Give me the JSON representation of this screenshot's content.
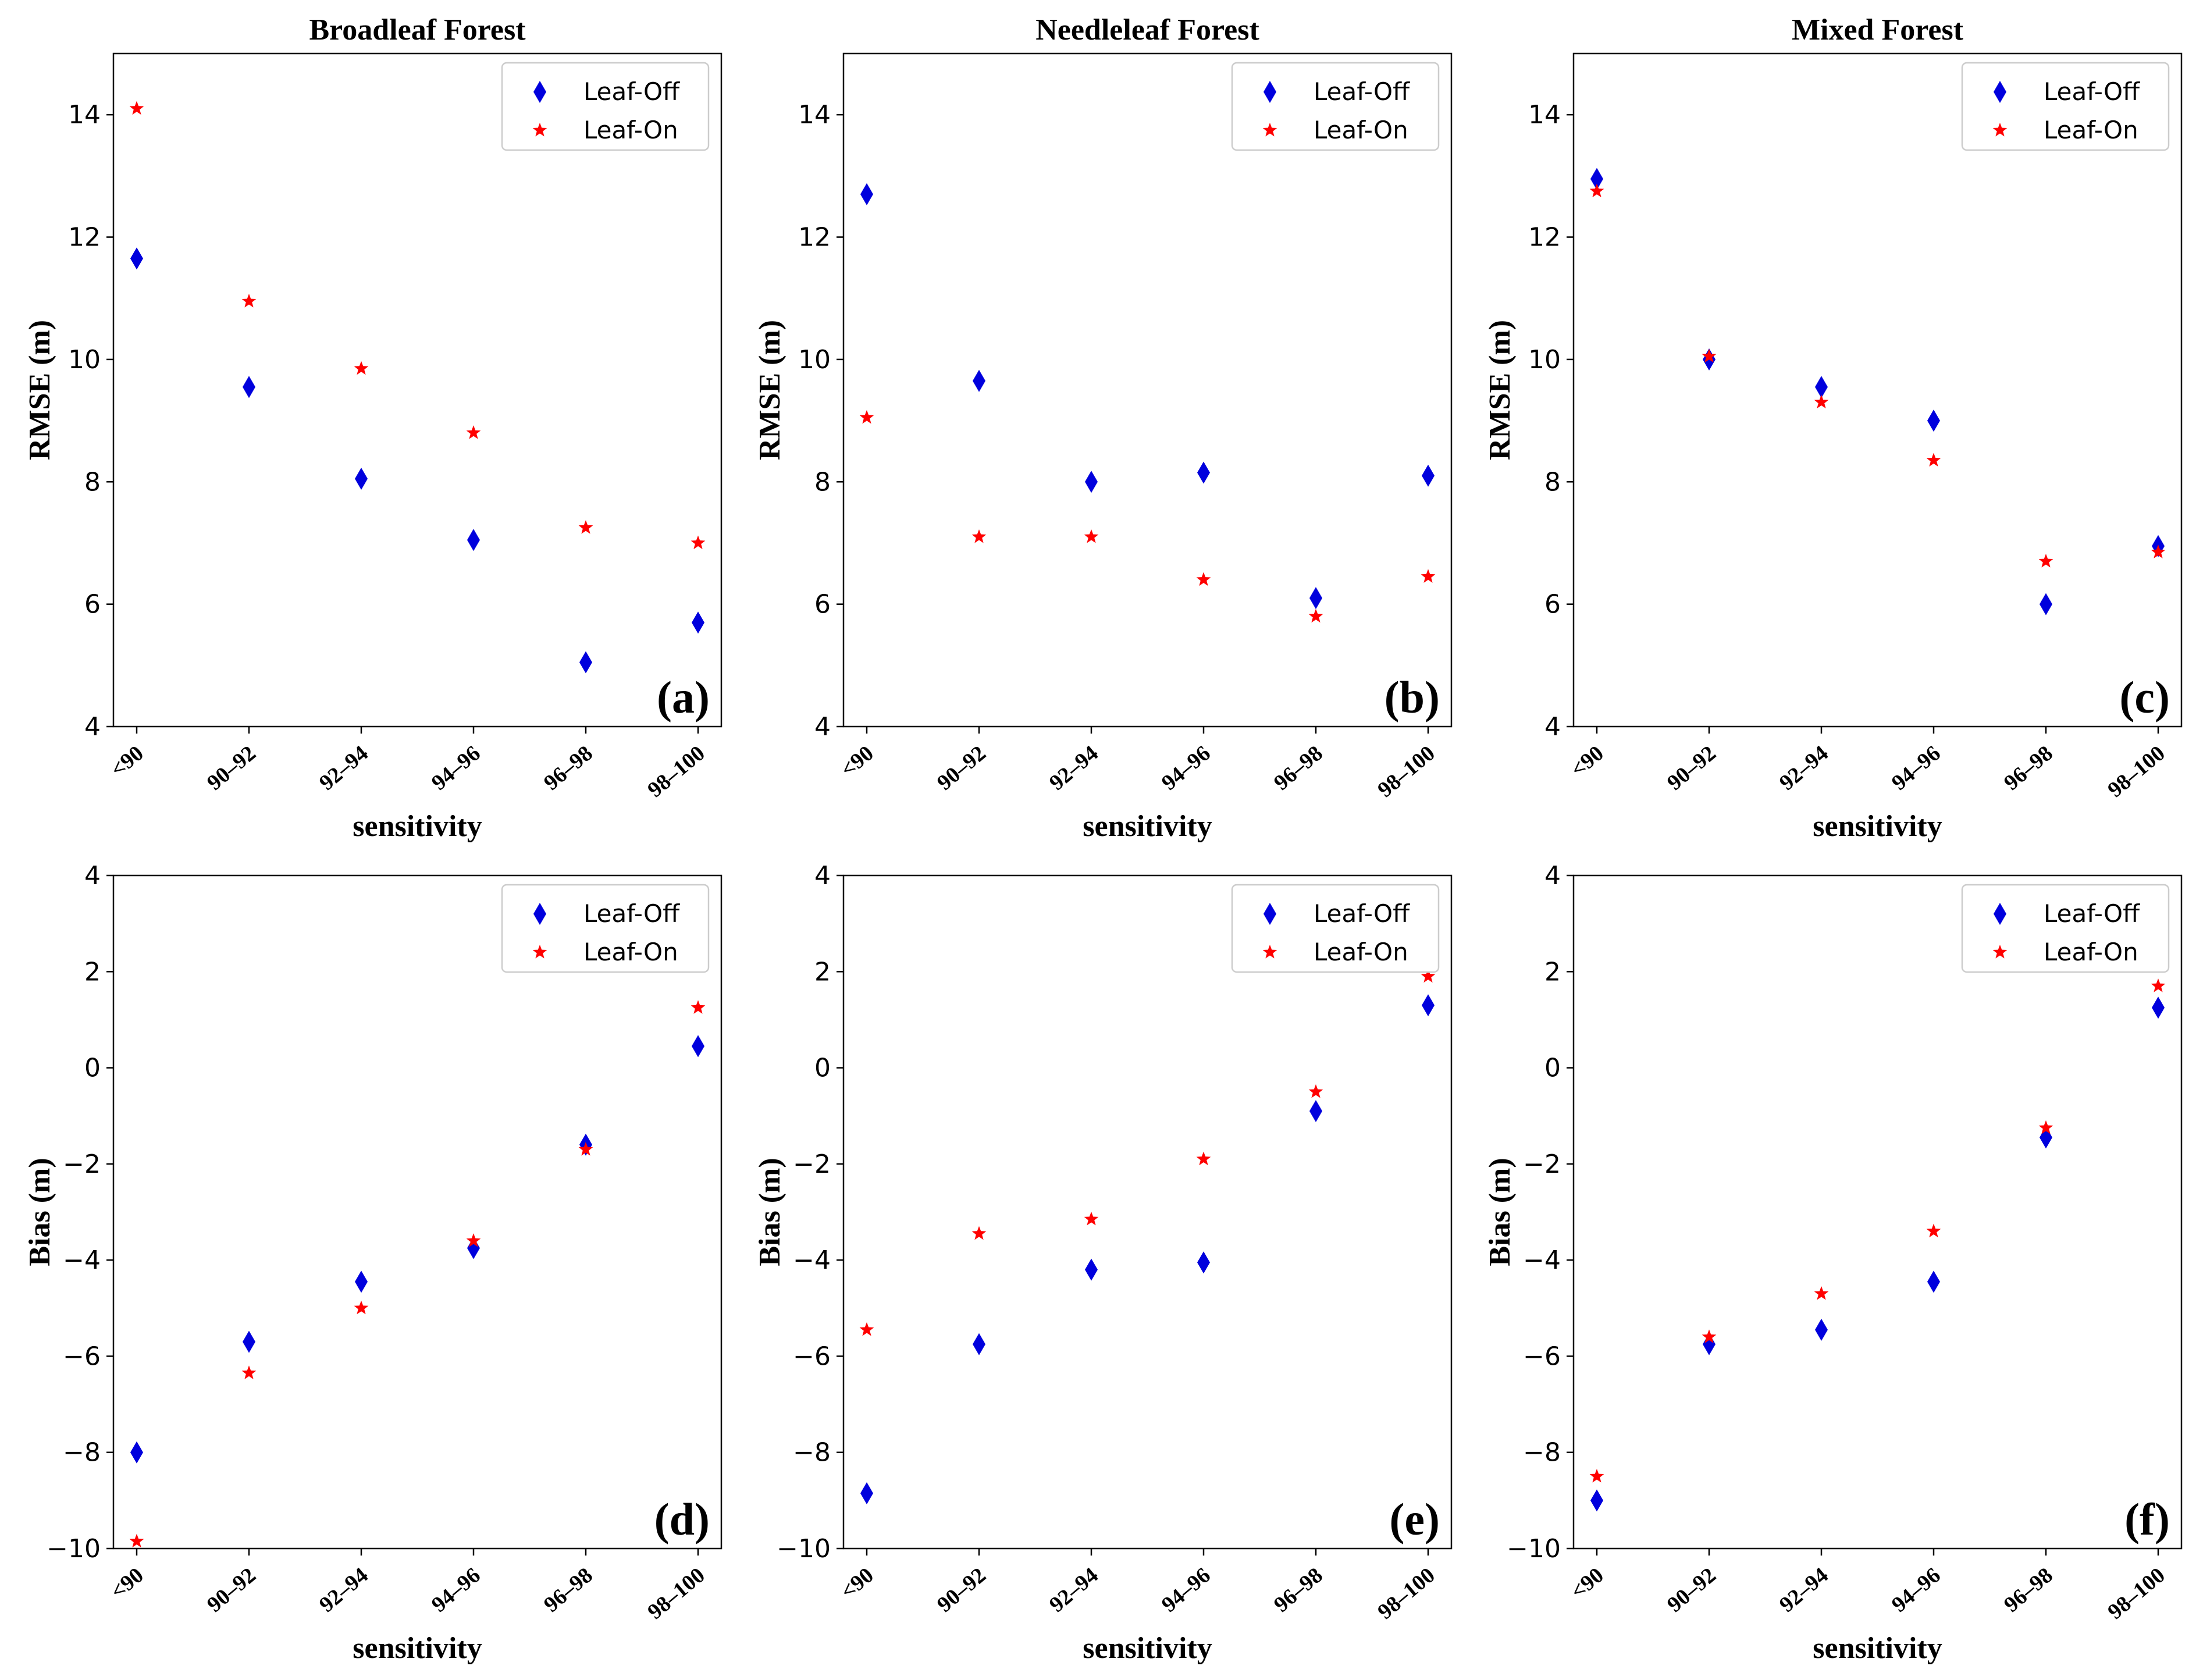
{
  "chart_data": [
    {
      "type": "scatter",
      "title": "Broadleaf Forest",
      "panel_label": "(a)",
      "xlabel": "sensitivity",
      "ylabel": "RMSE (m)",
      "categories": [
        "<90",
        "90–92",
        "92–94",
        "94–96",
        "96–98",
        "98–100"
      ],
      "ylim": [
        4,
        15
      ],
      "yticks": [
        4,
        6,
        8,
        10,
        12,
        14
      ],
      "legend_position": "top-right",
      "series": [
        {
          "name": "Leaf-Off",
          "marker": "diamond",
          "color": "#0000dd",
          "values": [
            11.65,
            9.55,
            8.05,
            7.05,
            5.05,
            5.7
          ]
        },
        {
          "name": "Leaf-On",
          "marker": "star",
          "color": "#ff0000",
          "values": [
            14.1,
            10.95,
            9.85,
            8.8,
            7.25,
            7.0
          ]
        }
      ]
    },
    {
      "type": "scatter",
      "title": "Needleleaf Forest",
      "panel_label": "(b)",
      "xlabel": "sensitivity",
      "ylabel": "RMSE (m)",
      "categories": [
        "<90",
        "90–92",
        "92–94",
        "94–96",
        "96–98",
        "98–100"
      ],
      "ylim": [
        4,
        15
      ],
      "yticks": [
        4,
        6,
        8,
        10,
        12,
        14
      ],
      "legend_position": "top-right",
      "series": [
        {
          "name": "Leaf-Off",
          "marker": "diamond",
          "color": "#0000dd",
          "values": [
            12.7,
            9.65,
            8.0,
            8.15,
            6.1,
            8.1
          ]
        },
        {
          "name": "Leaf-On",
          "marker": "star",
          "color": "#ff0000",
          "values": [
            9.05,
            7.1,
            7.1,
            6.4,
            5.8,
            6.45
          ]
        }
      ]
    },
    {
      "type": "scatter",
      "title": "Mixed Forest",
      "panel_label": "(c)",
      "xlabel": "sensitivity",
      "ylabel": "RMSE (m)",
      "categories": [
        "<90",
        "90–92",
        "92–94",
        "94–96",
        "96–98",
        "98–100"
      ],
      "ylim": [
        4,
        15
      ],
      "yticks": [
        4,
        6,
        8,
        10,
        12,
        14
      ],
      "legend_position": "top-right",
      "series": [
        {
          "name": "Leaf-Off",
          "marker": "diamond",
          "color": "#0000dd",
          "values": [
            12.95,
            10.0,
            9.55,
            9.0,
            6.0,
            6.95
          ]
        },
        {
          "name": "Leaf-On",
          "marker": "star",
          "color": "#ff0000",
          "values": [
            12.75,
            10.05,
            9.3,
            8.35,
            6.7,
            6.85
          ]
        }
      ]
    },
    {
      "type": "scatter",
      "title": "",
      "panel_label": "(d)",
      "xlabel": "sensitivity",
      "ylabel": "Bias (m)",
      "categories": [
        "<90",
        "90–92",
        "92–94",
        "94–96",
        "96–98",
        "98–100"
      ],
      "ylim": [
        -10,
        4
      ],
      "yticks": [
        -10,
        -8,
        -6,
        -4,
        -2,
        0,
        2,
        4
      ],
      "legend_position": "top-right",
      "series": [
        {
          "name": "Leaf-Off",
          "marker": "diamond",
          "color": "#0000dd",
          "values": [
            -8.0,
            -5.7,
            -4.45,
            -3.75,
            -1.6,
            0.45
          ]
        },
        {
          "name": "Leaf-On",
          "marker": "star",
          "color": "#ff0000",
          "values": [
            -9.85,
            -6.35,
            -5.0,
            -3.6,
            -1.7,
            1.25
          ]
        }
      ]
    },
    {
      "type": "scatter",
      "title": "",
      "panel_label": "(e)",
      "xlabel": "sensitivity",
      "ylabel": "Bias (m)",
      "categories": [
        "<90",
        "90–92",
        "92–94",
        "94–96",
        "96–98",
        "98–100"
      ],
      "ylim": [
        -10,
        4
      ],
      "yticks": [
        -10,
        -8,
        -6,
        -4,
        -2,
        0,
        2,
        4
      ],
      "legend_position": "top-right",
      "series": [
        {
          "name": "Leaf-Off",
          "marker": "diamond",
          "color": "#0000dd",
          "values": [
            -8.85,
            -5.75,
            -4.2,
            -4.05,
            -0.9,
            1.3
          ]
        },
        {
          "name": "Leaf-On",
          "marker": "star",
          "color": "#ff0000",
          "values": [
            -5.45,
            -3.45,
            -3.15,
            -1.9,
            -0.5,
            1.9
          ]
        }
      ]
    },
    {
      "type": "scatter",
      "title": "",
      "panel_label": "(f)",
      "xlabel": "sensitivity",
      "ylabel": "Bias (m)",
      "categories": [
        "<90",
        "90–92",
        "92–94",
        "94–96",
        "96–98",
        "98–100"
      ],
      "ylim": [
        -10,
        4
      ],
      "yticks": [
        -10,
        -8,
        -6,
        -4,
        -2,
        0,
        2,
        4
      ],
      "legend_position": "top-right",
      "series": [
        {
          "name": "Leaf-Off",
          "marker": "diamond",
          "color": "#0000dd",
          "values": [
            -9.0,
            -5.75,
            -5.45,
            -4.45,
            -1.45,
            1.25
          ]
        },
        {
          "name": "Leaf-On",
          "marker": "star",
          "color": "#ff0000",
          "values": [
            -8.5,
            -5.6,
            -4.7,
            -3.4,
            -1.25,
            1.7
          ]
        }
      ]
    }
  ]
}
